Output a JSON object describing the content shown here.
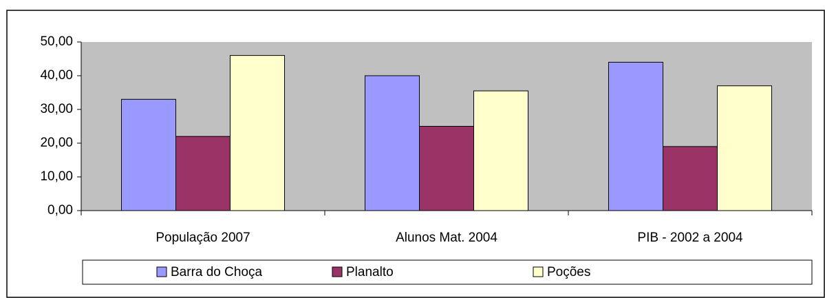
{
  "chart_data": {
    "type": "bar",
    "categories": [
      "População 2007",
      "Alunos Mat. 2004",
      "PIB - 2002 a 2004"
    ],
    "series": [
      {
        "name": "Barra do Choça",
        "color": "#9999ff",
        "values": [
          33,
          40,
          44
        ]
      },
      {
        "name": "Planalto",
        "color": "#993366",
        "values": [
          22,
          25,
          19
        ]
      },
      {
        "name": "Poções",
        "color": "#ffffcc",
        "values": [
          46,
          35.5,
          37
        ]
      }
    ],
    "ylim": [
      0,
      50
    ],
    "yticks": [
      {
        "value": 0,
        "label": "0,00"
      },
      {
        "value": 10,
        "label": "10,00"
      },
      {
        "value": 20,
        "label": "20,00"
      },
      {
        "value": 30,
        "label": "30,00"
      },
      {
        "value": 40,
        "label": "40,00"
      },
      {
        "value": 50,
        "label": "50,00"
      }
    ],
    "grid": false,
    "legend": "bottom",
    "plot_background": "#c0c0c0"
  }
}
